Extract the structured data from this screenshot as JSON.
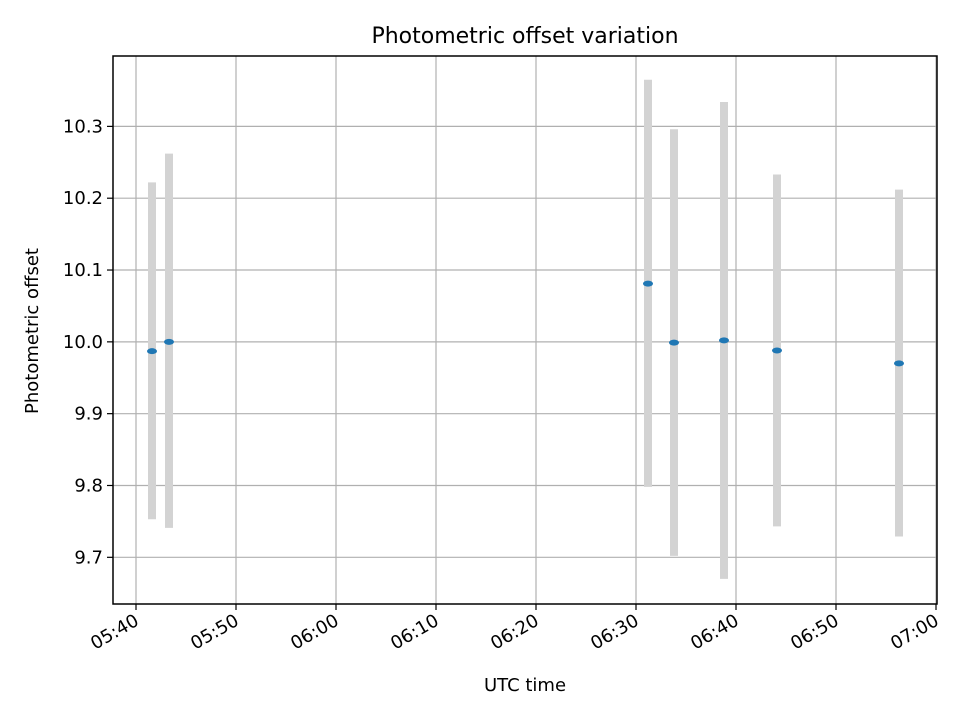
{
  "chart_data": {
    "type": "scatter",
    "title": "Photometric offset variation",
    "xlabel": "UTC time",
    "ylabel": "Photometric offset",
    "x_ticks": [
      "05:40",
      "05:50",
      "06:00",
      "06:10",
      "06:20",
      "06:30",
      "06:40",
      "06:50",
      "07:00"
    ],
    "x_tick_minutes": [
      340,
      350,
      360,
      370,
      380,
      390,
      400,
      410,
      420
    ],
    "xlim_minutes": [
      337.7,
      420.1
    ],
    "y_ticks": [
      9.7,
      9.8,
      9.9,
      10.0,
      10.1,
      10.2,
      10.3
    ],
    "ylim": [
      9.635,
      10.398
    ],
    "grid": true,
    "points": [
      {
        "time": "05:41:36",
        "y": 9.987,
        "err_low": 9.753,
        "err_high": 10.222
      },
      {
        "time": "05:43:18",
        "y": 10.0,
        "err_low": 9.741,
        "err_high": 10.262
      },
      {
        "time": "06:31:12",
        "y": 10.081,
        "err_low": 9.798,
        "err_high": 10.365
      },
      {
        "time": "06:33:48",
        "y": 9.999,
        "err_low": 9.702,
        "err_high": 10.296
      },
      {
        "time": "06:38:48",
        "y": 10.002,
        "err_low": 9.67,
        "err_high": 10.334
      },
      {
        "time": "06:44:06",
        "y": 9.988,
        "err_low": 9.743,
        "err_high": 10.233
      },
      {
        "time": "06:56:18",
        "y": 9.97,
        "err_low": 9.729,
        "err_high": 10.212
      }
    ],
    "colors": {
      "marker": "#1f77b4",
      "errorbar": "#d3d3d3",
      "grid": "#b0b0b0",
      "axes": "#000000"
    }
  }
}
